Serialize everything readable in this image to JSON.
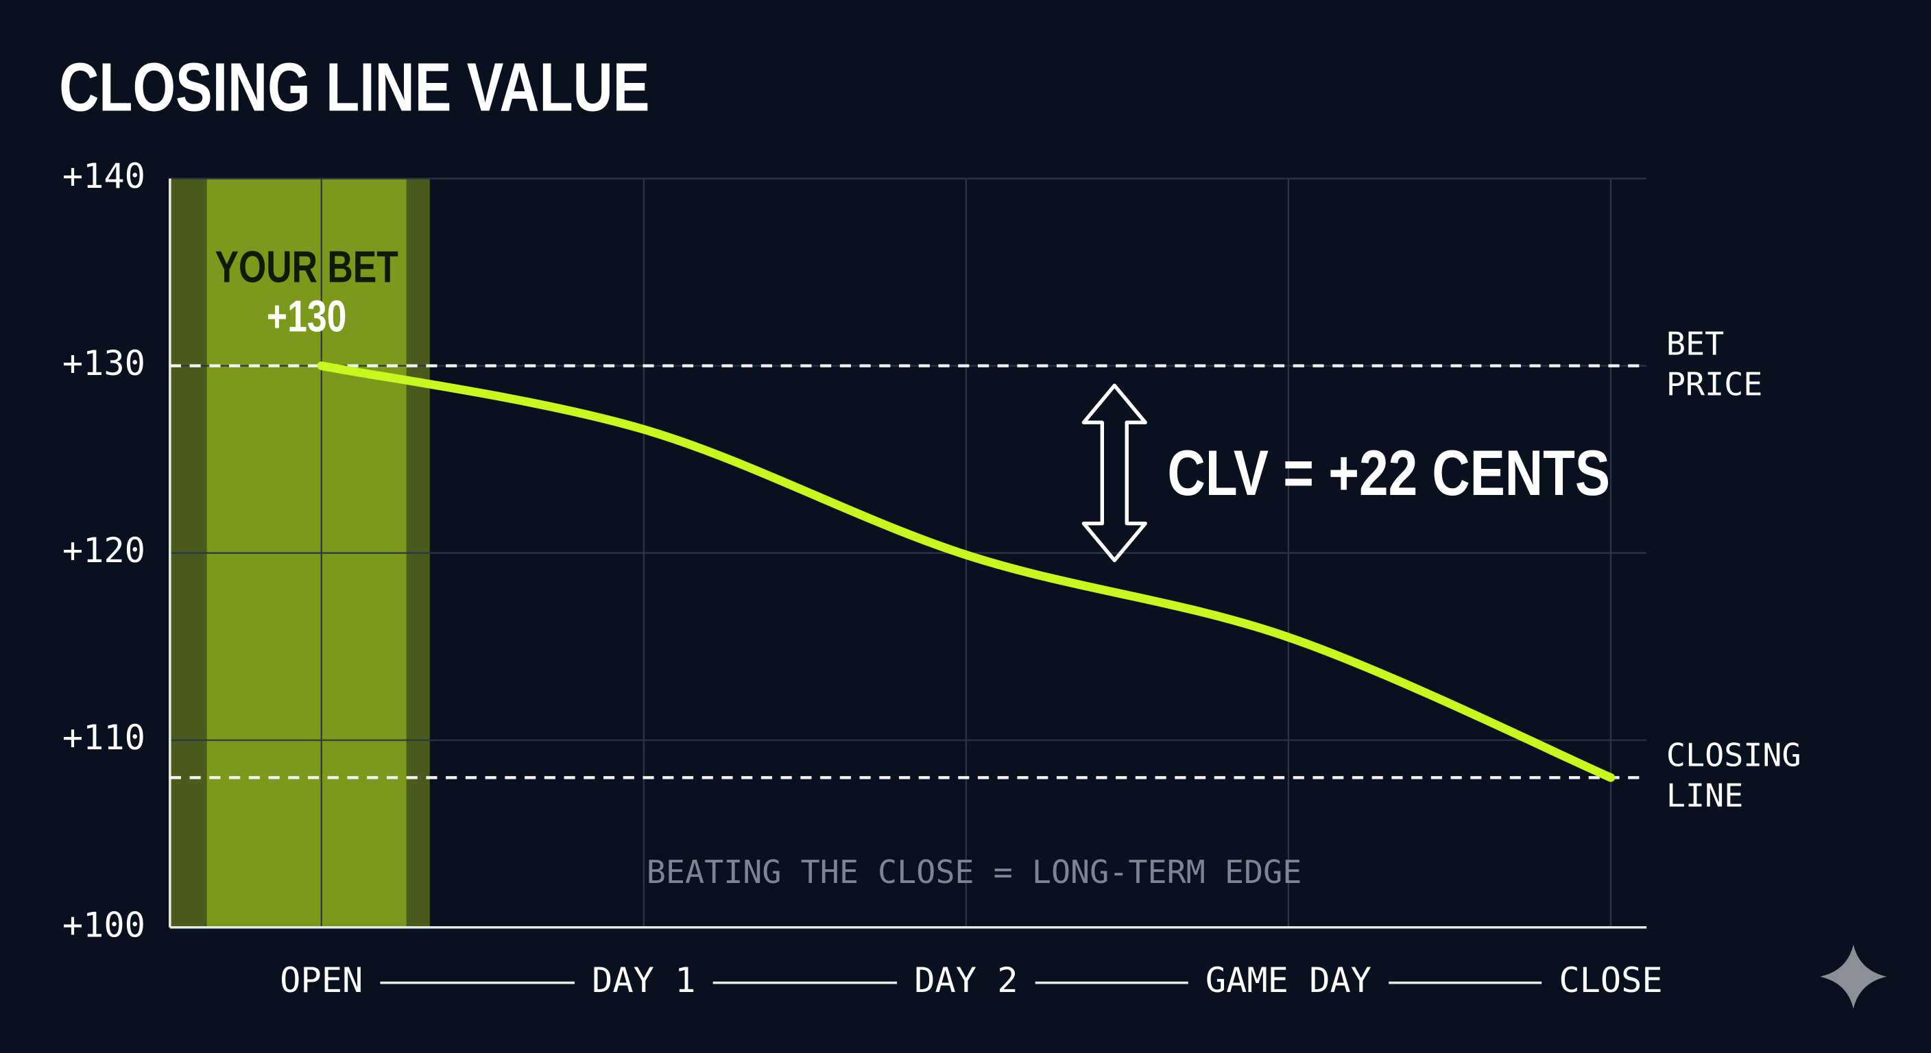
{
  "chart_data": {
    "type": "line",
    "title": "CLOSING LINE VALUE",
    "categories": [
      "OPEN",
      "DAY 1",
      "DAY 2",
      "GAME DAY",
      "CLOSE"
    ],
    "values": [
      130,
      126.6,
      119.9,
      115.5,
      108
    ],
    "value_labels": [
      "+130",
      null,
      null,
      null,
      null
    ],
    "color": "#c6f71e",
    "ylim": [
      100,
      140
    ],
    "yticks": [
      {
        "value": 100,
        "label": "+100"
      },
      {
        "value": 110,
        "label": "+110"
      },
      {
        "value": 120,
        "label": "+120"
      },
      {
        "value": 130,
        "label": "+130"
      },
      {
        "value": 140,
        "label": "+140"
      }
    ],
    "grid": true,
    "highlight_label": "YOUR BET",
    "reference_lines": [
      {
        "value": 130,
        "label": "BET PRICE"
      },
      {
        "value": 108,
        "label": "CLOSING LINE"
      }
    ],
    "clv_annotation": "CLV = +22 CENTS",
    "footnote": "BEATING THE CLOSE = LONG-TERM EDGE"
  }
}
